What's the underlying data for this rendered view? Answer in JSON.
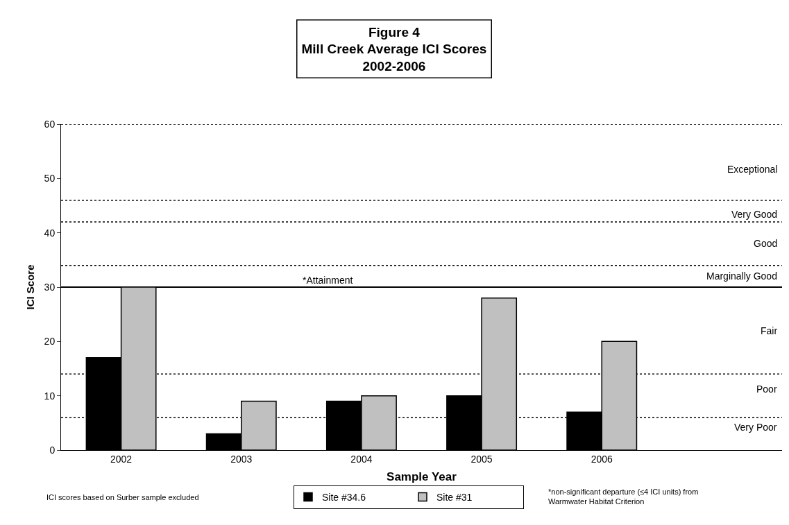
{
  "chart_data": {
    "type": "bar",
    "title": "Figure 4\nMill Creek Average ICI Scores\n2002-2006",
    "xlabel": "Sample Year",
    "ylabel": "ICI Score",
    "categories": [
      "2002",
      "2003",
      "2004",
      "2005",
      "2006",
      null
    ],
    "series": [
      {
        "name": "Site #34.6",
        "color": "#000000",
        "values": [
          17,
          3,
          9,
          10,
          7,
          null
        ]
      },
      {
        "name": "Site #31",
        "color": "#c0c0c0",
        "values": [
          30,
          9,
          10,
          28,
          20,
          null
        ]
      }
    ],
    "ylim": [
      0,
      60
    ],
    "yticks": [
      0,
      10,
      20,
      30,
      40,
      50,
      60
    ],
    "grid": false,
    "legend": "bottom",
    "ref_lines": [
      {
        "axis": "y",
        "value": 6,
        "line_style": "dashed"
      },
      {
        "axis": "y",
        "value": 14,
        "line_style": "dashed"
      },
      {
        "axis": "y",
        "value": 30,
        "label": "*Attainment",
        "line_style": "solid"
      },
      {
        "axis": "y",
        "value": 34,
        "line_style": "dashed"
      },
      {
        "axis": "y",
        "value": 42,
        "line_style": "dashed"
      },
      {
        "axis": "y",
        "value": 46,
        "line_style": "dashed"
      },
      {
        "axis": "y",
        "value": 60,
        "line_style": "dashed"
      }
    ],
    "annotations": [
      "ICI scores based on Surber sample excluded",
      "*non-significant departure (≤4 ICI units) from\nWarmwater Habitat Criterion",
      "Very Poor",
      "Poor",
      "Fair",
      "Marginally Good",
      "Good",
      "Very Good",
      "Exceptional"
    ]
  }
}
